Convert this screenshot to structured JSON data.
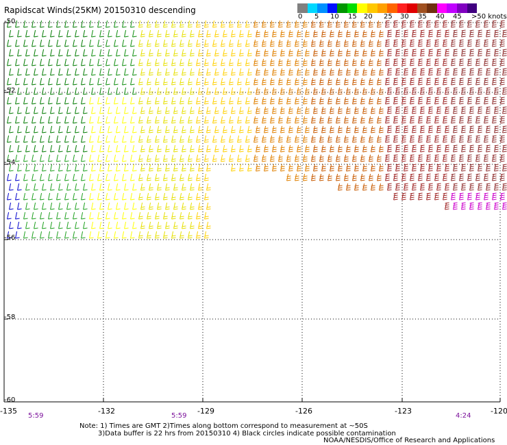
{
  "title": "Rapidscat Winds(25KM) 20150310 descending",
  "legend": {
    "labels": [
      "0",
      "5",
      "10",
      "15",
      "20",
      "25",
      "30",
      "35",
      "40",
      "45",
      ">50 knots"
    ],
    "colors": [
      "#808080",
      "#00d8ff",
      "#0090ff",
      "#0010ff",
      "#009600",
      "#00dd00",
      "#ffff00",
      "#ffc800",
      "#ffa000",
      "#ff6400",
      "#ff2020",
      "#e00000",
      "#a05020",
      "#703010",
      "#ff00ff",
      "#c000ff",
      "#8000c0",
      "#400080"
    ]
  },
  "axes": {
    "lat_labels": [
      "-50",
      "-52",
      "-54",
      "-56",
      "-58",
      "-60"
    ],
    "lon_labels": [
      "-135",
      "-132",
      "-129",
      "-126",
      "-123",
      "-120"
    ]
  },
  "times": [
    "5:59",
    "5:59",
    "4:24"
  ],
  "notes": [
    "Note: 1) Times are GMT 2)Times along bottom correspond to measurement at ~50S",
    "3)Data buffer is 22 hrs from 20150310 4) Black circles indicate possible contamination"
  ],
  "credit": "NOAA/NESDIS/Office of Research and Applications"
}
